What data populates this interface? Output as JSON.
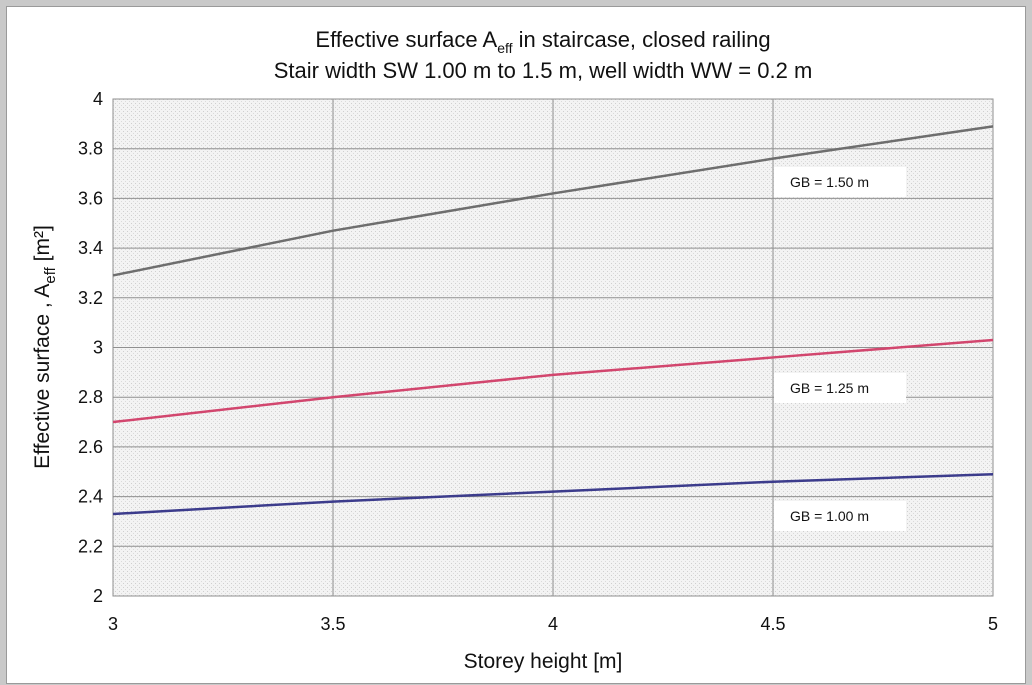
{
  "chart_data": {
    "type": "line",
    "title_line1_pre": "Effective surface A",
    "title_line1_sub": "eff",
    "title_line1_post": " in staircase, closed railing",
    "title_line2": "Stair width SW 1.00 m to 1.5 m, well width WW = 0.2 m",
    "xlabel": "Storey height  [m]",
    "ylabel_pre": "Effective surface , A",
    "ylabel_sub": "eff",
    "ylabel_post": " [m²]",
    "xlim": [
      3,
      5
    ],
    "ylim": [
      2,
      4
    ],
    "xticks": [
      "3",
      "3.5",
      "4",
      "4.5",
      "5"
    ],
    "yticks": [
      "2",
      "2.2",
      "2.4",
      "2.6",
      "2.8",
      "3",
      "3.2",
      "3.4",
      "3.6",
      "3.8",
      "4"
    ],
    "grid": true,
    "series": [
      {
        "name": "GB = 1.50 m",
        "color": "#6e6e6e",
        "x": [
          3,
          3.5,
          4,
          4.5,
          5
        ],
        "y": [
          3.29,
          3.47,
          3.62,
          3.76,
          3.89
        ]
      },
      {
        "name": "GB = 1.25 m",
        "color": "#d2466e",
        "x": [
          3,
          3.5,
          4,
          4.5,
          5
        ],
        "y": [
          2.7,
          2.8,
          2.89,
          2.96,
          3.03
        ]
      },
      {
        "name": "GB = 1.00 m",
        "color": "#3c3c8c",
        "x": [
          3,
          3.5,
          4,
          4.5,
          5
        ],
        "y": [
          2.33,
          2.38,
          2.42,
          2.46,
          2.49
        ]
      }
    ]
  }
}
